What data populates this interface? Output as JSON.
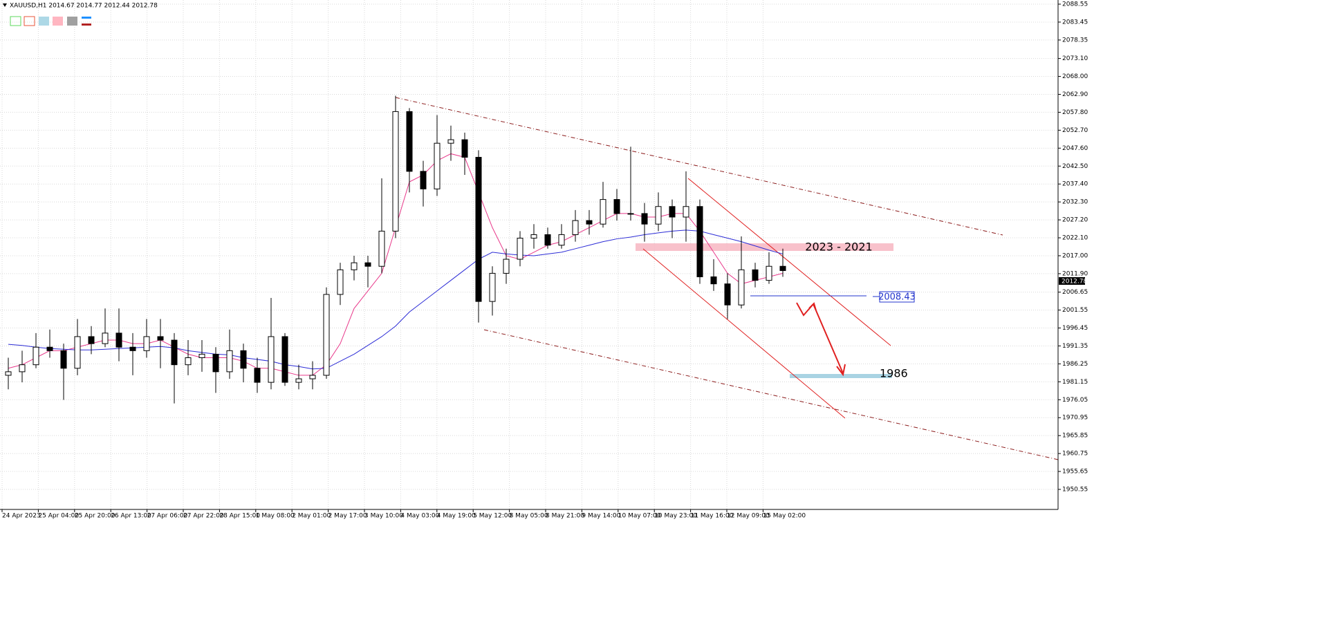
{
  "chart_data": {
    "type": "candlestick",
    "header": "XAUUSD,H1  2014.67 2014.77 2012.44 2012.78",
    "price_label": "2012.78",
    "annotations": [
      "2023 - 2021",
      "2008.43",
      "1986"
    ],
    "bull_color": "#ffffff",
    "bear_color": "#000000",
    "wick_color": "#000000",
    "grid": true,
    "ylim": [
      1944.85,
      2089.73
    ],
    "yticks": [
      2088.55,
      2083.45,
      2078.35,
      {
        "value": 2073.1,
        "label": "2073.10"
      },
      {
        "value": 2068,
        "label": "2068.00"
      },
      {
        "value": 2062.9,
        "label": "2062.90"
      },
      {
        "value": 2057.8,
        "label": "2057.80"
      },
      {
        "value": 2052.7,
        "label": "2052.70"
      },
      {
        "value": 2047.6,
        "label": "2047.60"
      },
      {
        "value": 2042.5,
        "label": "2042.50"
      },
      {
        "value": 2037.4,
        "label": "2037.40"
      },
      {
        "value": 2032.3,
        "label": "2032.30"
      },
      {
        "value": 2027.2,
        "label": "2027.20"
      },
      {
        "value": 2022.1,
        "label": "2022.10"
      },
      {
        "value": 2017,
        "label": "2017.00"
      },
      {
        "value": 2011.9,
        "label": "2011.90"
      },
      2006.65,
      2001.55,
      1996.45,
      1991.35,
      1986.25,
      1981.15,
      1976.05,
      1970.95,
      1965.85,
      1960.75,
      1955.65,
      1950.55
    ],
    "x_labels": [
      "24 Apr 2023",
      "25 Apr 04:00",
      "25 Apr 20:00",
      "26 Apr 13:00",
      "27 Apr 06:00",
      "27 Apr 22:00",
      "28 Apr 15:00",
      "1 May 08:00",
      "2 May 01:00",
      "2 May 17:00",
      "3 May 10:00",
      "4 May 03:00",
      "4 May 19:00",
      "5 May 12:00",
      "8 May 05:00",
      "8 May 21:00",
      "9 May 14:00",
      "10 May 07:00",
      "10 May 23:00",
      "11 May 16:00",
      "12 May 09:00",
      "15 May 02:00"
    ],
    "candles": [
      [
        1983,
        1988,
        1979,
        1984
      ],
      [
        1984,
        1990,
        1981,
        1986
      ],
      [
        1986,
        1995,
        1985,
        1991
      ],
      [
        1991,
        1996,
        1988,
        1990
      ],
      [
        1990,
        1992,
        1976,
        1985
      ],
      [
        1985,
        1999,
        1983,
        1994
      ],
      [
        1994,
        1997,
        1989,
        1992
      ],
      [
        1992,
        2002,
        1991,
        1995
      ],
      [
        1995,
        2002,
        1987,
        1991
      ],
      [
        1991,
        1995,
        1983,
        1990
      ],
      [
        1990,
        1999,
        1988,
        1994
      ],
      [
        1994,
        1999,
        1985,
        1993
      ],
      [
        1993,
        1995,
        1975,
        1986
      ],
      [
        1986,
        1993,
        1983,
        1988
      ],
      [
        1988,
        1993,
        1984,
        1989
      ],
      [
        1989,
        1991,
        1978,
        1984
      ],
      [
        1984,
        1996,
        1982,
        1990
      ],
      [
        1990,
        1992,
        1981,
        1985
      ],
      [
        1985,
        1988,
        1978,
        1981
      ],
      [
        1981,
        2005,
        1979,
        1994
      ],
      [
        1994,
        1995,
        1980,
        1981
      ],
      [
        1981,
        1986,
        1979,
        1982
      ],
      [
        1982,
        1987,
        1979,
        1983
      ],
      [
        1983,
        2008,
        1982,
        2006
      ],
      [
        2006,
        2015,
        2003,
        2013
      ],
      [
        2013,
        2017,
        2010,
        2015
      ],
      [
        2015,
        2017,
        2008,
        2014
      ],
      [
        2014,
        2039,
        2012,
        2024
      ],
      [
        2024,
        2062.5,
        2022,
        2058
      ],
      [
        2058,
        2059,
        2035,
        2041
      ],
      [
        2041,
        2044,
        2031,
        2036
      ],
      [
        2036,
        2057,
        2034,
        2049
      ],
      [
        2049,
        2054,
        2044,
        2050
      ],
      [
        2050,
        2052,
        2040,
        2045
      ],
      [
        2045,
        2047,
        1998,
        2004
      ],
      [
        2004,
        2014,
        2000,
        2012
      ],
      [
        2012,
        2019,
        2009,
        2016
      ],
      [
        2016,
        2024,
        2014,
        2022
      ],
      [
        2022,
        2026,
        2019,
        2023
      ],
      [
        2023,
        2025,
        2019,
        2020
      ],
      [
        2020,
        2026,
        2019,
        2023
      ],
      [
        2023,
        2030,
        2021,
        2027
      ],
      [
        2027,
        2030,
        2023,
        2026
      ],
      [
        2026,
        2038,
        2025,
        2033
      ],
      [
        2033,
        2036,
        2027,
        2029
      ],
      [
        2029,
        2048,
        2027,
        2029
      ],
      [
        2029,
        2032,
        2021,
        2026
      ],
      [
        2026,
        2035,
        2024,
        2031
      ],
      [
        2031,
        2033,
        2022,
        2028
      ],
      [
        2028,
        2041,
        2021,
        2031
      ],
      [
        2031,
        2033,
        2009,
        2011
      ],
      [
        2011,
        2016,
        2007,
        2009
      ],
      [
        2009,
        2012,
        1999,
        2003
      ],
      [
        2003,
        2022.5,
        2002,
        2013
      ],
      [
        2013,
        2015,
        2008,
        2010
      ],
      [
        2010,
        2018,
        2009,
        2014
      ],
      [
        2014,
        2019,
        2011,
        2012.78
      ]
    ],
    "ma_lines": [
      {
        "color": "#e8388a",
        "values": [
          1985,
          1986,
          1988,
          1990,
          1990,
          1991,
          1992,
          1993,
          1993,
          1992,
          1992,
          1993,
          1991,
          1989,
          1988,
          1988,
          1988,
          1987,
          1985,
          1985,
          1984,
          1983,
          1983,
          1986,
          1992,
          2002,
          2007,
          2012,
          2025,
          2038,
          2040,
          2044,
          2046,
          2045,
          2035,
          2025,
          2017,
          2016,
          2018,
          2020,
          2021,
          2023,
          2025,
          2027,
          2029,
          2029,
          2028,
          2028,
          2029,
          2029,
          2024,
          2018,
          2012,
          2009,
          2010,
          2011,
          2012
        ]
      },
      {
        "color": "#2b2bd6",
        "values": [
          1991.8,
          1991.5,
          1991,
          1990.6,
          1990.4,
          1990.2,
          1990.2,
          1990.4,
          1990.6,
          1990.8,
          1991,
          1991.2,
          1990.8,
          1990,
          1989.5,
          1989,
          1988.8,
          1988,
          1987.5,
          1987,
          1986,
          1985.5,
          1984.8,
          1985,
          1987,
          1989,
          1991.5,
          1994,
          1997,
          2001,
          2004,
          2007,
          2010,
          2013,
          2016,
          2018,
          2017.5,
          2017.2,
          2017,
          2017.5,
          2018,
          2019,
          2020,
          2021,
          2021.8,
          2022.3,
          2023,
          2023.5,
          2024,
          2024.3,
          2024,
          2023,
          2022,
          2021,
          2019.8,
          2018.6,
          2017.5
        ]
      }
    ]
  }
}
